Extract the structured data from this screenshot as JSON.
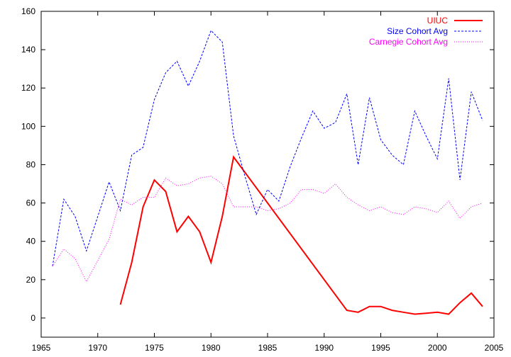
{
  "chart_data": {
    "type": "line",
    "title": "",
    "xlabel": "",
    "ylabel": "",
    "xlim": [
      1965,
      2005
    ],
    "ylim": [
      -10,
      160
    ],
    "xticks": [
      1965,
      1970,
      1975,
      1980,
      1985,
      1990,
      1995,
      2000,
      2005
    ],
    "yticks": [
      0,
      20,
      40,
      60,
      80,
      100,
      120,
      140,
      160
    ],
    "grid": false,
    "legend_position": "top-right",
    "series": [
      {
        "name": "UIUC",
        "color": "#ff0000",
        "style": "solid",
        "x": [
          1972,
          1973,
          1974,
          1975,
          1976,
          1977,
          1978,
          1979,
          1980,
          1981,
          1982,
          1992,
          1993,
          1994,
          1995,
          1996,
          1997,
          1998,
          1999,
          2000,
          2001,
          2002,
          2003,
          2004
        ],
        "y": [
          7,
          29,
          58,
          72,
          66,
          45,
          53,
          45,
          29,
          53,
          84,
          4,
          3,
          6,
          6,
          4,
          3,
          2,
          2.5,
          3,
          2,
          8,
          13,
          6
        ]
      },
      {
        "name": "Size Cohort Avg",
        "color": "#0000ff",
        "style": "dashed",
        "x": [
          1966,
          1967,
          1968,
          1969,
          1970,
          1971,
          1972,
          1973,
          1974,
          1975,
          1976,
          1977,
          1978,
          1979,
          1980,
          1981,
          1982,
          1983,
          1984,
          1985,
          1986,
          1987,
          1988,
          1989,
          1990,
          1991,
          1992,
          1993,
          1994,
          1995,
          1996,
          1997,
          1998,
          1999,
          2000,
          2001,
          2002,
          2003,
          2004
        ],
        "y": [
          27,
          62,
          53,
          35,
          53,
          71,
          56,
          85,
          89,
          114,
          128,
          134,
          121,
          134,
          150,
          144,
          95,
          74,
          54,
          67,
          61,
          79,
          94,
          108,
          99,
          102,
          117,
          80,
          115,
          93,
          85,
          80,
          108,
          95,
          83,
          125,
          72,
          118,
          103
        ]
      },
      {
        "name": "Carnegie Cohort Avg",
        "color": "#ff00ff",
        "style": "dotted",
        "x": [
          1966,
          1967,
          1968,
          1969,
          1970,
          1971,
          1972,
          1973,
          1974,
          1975,
          1976,
          1977,
          1978,
          1979,
          1980,
          1981,
          1982,
          1983,
          1984,
          1985,
          1986,
          1987,
          1988,
          1989,
          1990,
          1991,
          1992,
          1993,
          1994,
          1995,
          1996,
          1997,
          1998,
          1999,
          2000,
          2001,
          2002,
          2003,
          2004
        ],
        "y": [
          27,
          36,
          31,
          19,
          30,
          41,
          62,
          59,
          63,
          63,
          73,
          69,
          70,
          73,
          74,
          70,
          58,
          58,
          58,
          56,
          57,
          60,
          67,
          67,
          65,
          70,
          63,
          59,
          56,
          58,
          55,
          54,
          58,
          57,
          55,
          61,
          52,
          58,
          60
        ]
      }
    ]
  }
}
